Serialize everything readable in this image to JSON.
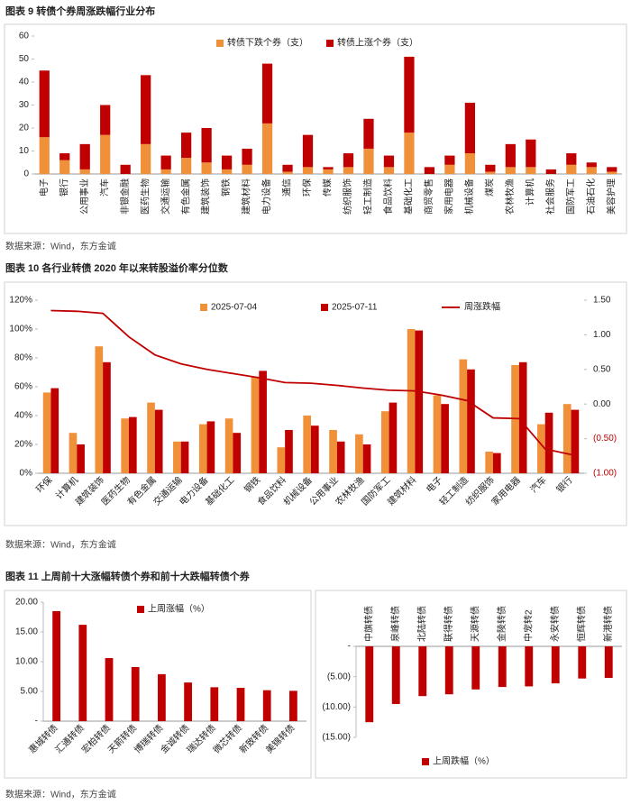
{
  "figures": [
    {
      "title": "图表 9  转债个券周涨跌幅行业分布",
      "source": "数据来源：Wind，东方金诚"
    },
    {
      "title": "图表 10  各行业转债 2020 年以来转股溢价率分位数",
      "source": "数据来源：Wind，东方金诚"
    },
    {
      "title": "图表 11  上周前十大涨幅转债个券和前十大跌幅转债个券",
      "source": "数据来源：Wind，东方金诚"
    }
  ],
  "chart_data": [
    {
      "type": "stacked_bar",
      "categories": [
        "电子",
        "银行",
        "公用事业",
        "汽车",
        "非银金融",
        "医药生物",
        "交通运输",
        "有色金属",
        "建筑装饰",
        "钢铁",
        "建筑材料",
        "电力设备",
        "通信",
        "环保",
        "传媒",
        "纺织服饰",
        "轻工制造",
        "食品饮料",
        "基础化工",
        "商贸零售",
        "家用电器",
        "机械设备",
        "煤炭",
        "农林牧渔",
        "计算机",
        "社会服务",
        "国防军工",
        "石油石化",
        "美容护理"
      ],
      "series": [
        {
          "name": "转债下跌个券（支）",
          "color": "#f0913a",
          "values": [
            16,
            6,
            2,
            17,
            0,
            13,
            2,
            7,
            5,
            2,
            4,
            22,
            1,
            3,
            2,
            3,
            11,
            3,
            18,
            0,
            4,
            9,
            1,
            3,
            3,
            0,
            4,
            3,
            1
          ]
        },
        {
          "name": "转债上涨个券（支）",
          "color": "#c00000",
          "values": [
            29,
            3,
            11,
            13,
            4,
            30,
            6,
            11,
            15,
            6,
            7,
            26,
            3,
            14,
            1,
            6,
            13,
            5,
            33,
            3,
            4,
            22,
            3,
            10,
            12,
            2,
            5,
            2,
            2
          ]
        }
      ],
      "ylim": [
        0,
        60
      ],
      "yticks": [
        0,
        10,
        20,
        30,
        40,
        50,
        60
      ]
    },
    {
      "type": "combo",
      "categories": [
        "环保",
        "计算机",
        "建筑装饰",
        "医药生物",
        "有色金属",
        "交通运输",
        "电力设备",
        "基础化工",
        "钢铁",
        "食品饮料",
        "机械设备",
        "公用事业",
        "农林牧渔",
        "国防军工",
        "建筑材料",
        "电子",
        "轻工制造",
        "纺织服饰",
        "家用电器",
        "汽车",
        "银行"
      ],
      "series": [
        {
          "name": "2025-07-04",
          "color": "#f0913a",
          "values": [
            56,
            28,
            88,
            38,
            49,
            22,
            34,
            38,
            67,
            18,
            40,
            30,
            27,
            43,
            100,
            54,
            79,
            15,
            75,
            34,
            48
          ]
        },
        {
          "name": "2025-07-11",
          "color": "#c00000",
          "values": [
            59,
            20,
            77,
            39,
            44,
            22,
            36,
            28,
            71,
            30,
            33,
            22,
            20,
            49,
            99,
            48,
            72,
            14,
            77,
            42,
            44
          ]
        },
        {
          "name": "周涨跌幅",
          "color": "#c00000",
          "axis": "y2",
          "values": [
            1.35,
            1.34,
            1.31,
            0.97,
            0.71,
            0.58,
            0.5,
            0.44,
            0.38,
            0.31,
            0.3,
            0.27,
            0.23,
            0.2,
            0.19,
            0.13,
            0.05,
            -0.2,
            -0.21,
            -0.65,
            -0.73
          ]
        }
      ],
      "ylim": [
        0,
        120
      ],
      "yticks": [
        {
          "value": 0,
          "label": "0%"
        },
        {
          "value": 20,
          "label": "20%"
        },
        {
          "value": 40,
          "label": "40%"
        },
        {
          "value": 60,
          "label": "60%"
        },
        {
          "value": 80,
          "label": "80%"
        },
        {
          "value": 100,
          "label": "100%"
        },
        {
          "value": 120,
          "label": "120%"
        }
      ],
      "y2lim": [
        -1,
        1.5
      ],
      "y2ticks": [
        {
          "value": -1,
          "label": "(1.00)"
        },
        {
          "value": -0.5,
          "label": "(0.50)"
        },
        {
          "value": 0,
          "label": "0.00"
        },
        {
          "value": 0.5,
          "label": "0.50"
        },
        {
          "value": 1,
          "label": "1.00"
        },
        {
          "value": 1.5,
          "label": "1.50"
        }
      ]
    },
    {
      "type": "bar",
      "categories": [
        "惠城转债",
        "汇通转债",
        "宏柏转债",
        "天箭转债",
        "博瑞转债",
        "金诚转债",
        "瑞达转债",
        "微芯转债",
        "新致转债",
        "美锦转债"
      ],
      "series": [
        {
          "name": "上周涨幅（%）",
          "color": "#c00000",
          "values": [
            18.5,
            16.2,
            10.6,
            9.1,
            7.9,
            6.5,
            5.7,
            5.6,
            5.2,
            5.1
          ]
        }
      ],
      "ylim": [
        0,
        20
      ],
      "yticks": [
        {
          "value": 0,
          "label": "-"
        },
        {
          "value": 5,
          "label": "5.00"
        },
        {
          "value": 10,
          "label": "10.00"
        },
        {
          "value": 15,
          "label": "15.00"
        },
        {
          "value": 20,
          "label": "20.00"
        }
      ]
    },
    {
      "type": "bar",
      "categories": [
        "中旗转债",
        "泉峰转债",
        "北陆转债",
        "联得转债",
        "天源转债",
        "金陵转债",
        "中宠转2",
        "永安转债",
        "恒辉转债",
        "新港转债"
      ],
      "series": [
        {
          "name": "上周跌幅（%）",
          "color": "#c00000",
          "values": [
            -12.5,
            -9.5,
            -8.2,
            -7.9,
            -7.1,
            -6.7,
            -6.6,
            -6.1,
            -5.3,
            -5.2
          ]
        }
      ],
      "ylim": [
        -15,
        0
      ],
      "yticks": [
        {
          "value": -15,
          "label": "(15.00)"
        },
        {
          "value": -10,
          "label": "(10.00)"
        },
        {
          "value": -5,
          "label": "(5.00)"
        },
        {
          "value": 0,
          "label": "-"
        }
      ]
    }
  ]
}
